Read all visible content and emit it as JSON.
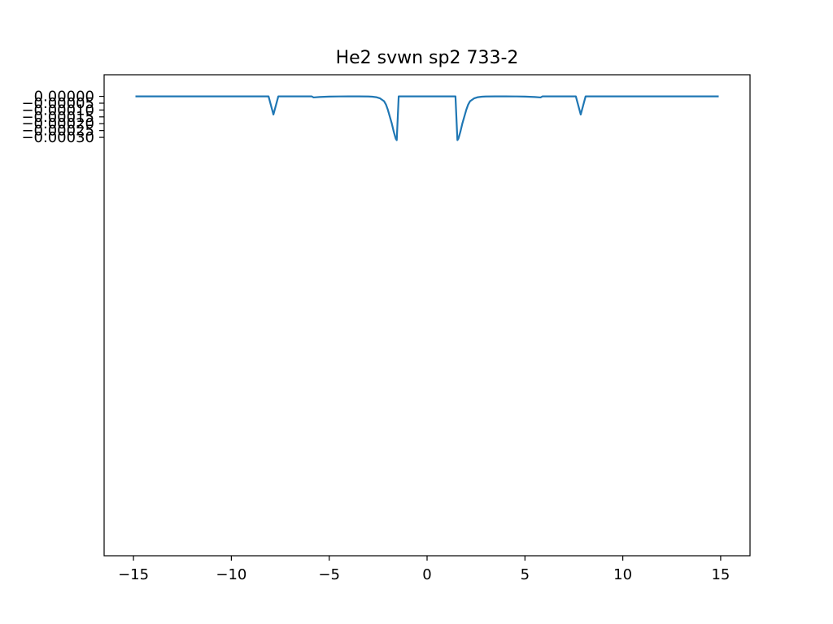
{
  "chart_data": {
    "type": "line",
    "title": "He2 svwn sp2 733-2",
    "xlabel": "",
    "ylabel": "",
    "xlim": [
      -16.5,
      16.5
    ],
    "ylim": [
      -0.00336,
      0.000158
    ],
    "grid": false,
    "legend": "none",
    "x_ticks": [
      {
        "value": -15,
        "label": "−15"
      },
      {
        "value": -10,
        "label": "−10"
      },
      {
        "value": -5,
        "label": "−5"
      },
      {
        "value": 0,
        "label": "0"
      },
      {
        "value": 5,
        "label": "5"
      },
      {
        "value": 10,
        "label": "10"
      },
      {
        "value": 15,
        "label": "15"
      }
    ],
    "y_ticks": [
      {
        "value": 0,
        "label": "0.00000"
      },
      {
        "value": -5e-05,
        "label": "−0.00005"
      },
      {
        "value": -0.0001,
        "label": "−0.00010"
      },
      {
        "value": -0.00015,
        "label": "−0.00015"
      },
      {
        "value": -0.0002,
        "label": "−0.00020"
      },
      {
        "value": -0.00025,
        "label": "−0.00025"
      },
      {
        "value": -0.0003,
        "label": "−0.00030"
      }
    ],
    "series": [
      {
        "color": "#1f77b4",
        "points": [
          [
            -14.9,
            0
          ],
          [
            -8.1,
            0
          ],
          [
            -7.85,
            -0.000133
          ],
          [
            -7.6,
            0
          ],
          [
            -5.9,
            0
          ],
          [
            -5.8,
            -8e-06
          ],
          [
            -5.5,
            -4.5e-06
          ],
          [
            -5.0,
            -1.5e-06
          ],
          [
            -4.5,
            -5e-07
          ],
          [
            -4.0,
            0
          ],
          [
            -3.5,
            0
          ],
          [
            -3.0,
            -1e-06
          ],
          [
            -2.8,
            -2.5e-06
          ],
          [
            -2.6,
            -6e-06
          ],
          [
            -2.4,
            -1.5e-05
          ],
          [
            -2.2,
            -3.5e-05
          ],
          [
            -2.1,
            -6e-05
          ],
          [
            -2.0,
            -0.0001
          ],
          [
            -1.9,
            -0.00015
          ],
          [
            -1.8,
            -0.0002
          ],
          [
            -1.7,
            -0.00026
          ],
          [
            -1.6,
            -0.00031
          ],
          [
            -1.55,
            -0.00032
          ],
          [
            -1.45,
            0
          ],
          [
            1.45,
            0
          ],
          [
            1.55,
            -0.00032
          ],
          [
            1.6,
            -0.00031
          ],
          [
            1.7,
            -0.00026
          ],
          [
            1.8,
            -0.0002
          ],
          [
            1.9,
            -0.00015
          ],
          [
            2.0,
            -0.0001
          ],
          [
            2.1,
            -6e-05
          ],
          [
            2.2,
            -3.5e-05
          ],
          [
            2.4,
            -1.5e-05
          ],
          [
            2.6,
            -6e-06
          ],
          [
            2.8,
            -2.5e-06
          ],
          [
            3.0,
            -1e-06
          ],
          [
            3.5,
            0
          ],
          [
            4.0,
            0
          ],
          [
            4.5,
            -5e-07
          ],
          [
            5.0,
            -1.5e-06
          ],
          [
            5.5,
            -4.5e-06
          ],
          [
            5.8,
            -8e-06
          ],
          [
            5.9,
            0
          ],
          [
            7.6,
            0
          ],
          [
            7.85,
            -0.000133
          ],
          [
            8.1,
            0
          ],
          [
            14.9,
            0
          ]
        ]
      }
    ]
  }
}
